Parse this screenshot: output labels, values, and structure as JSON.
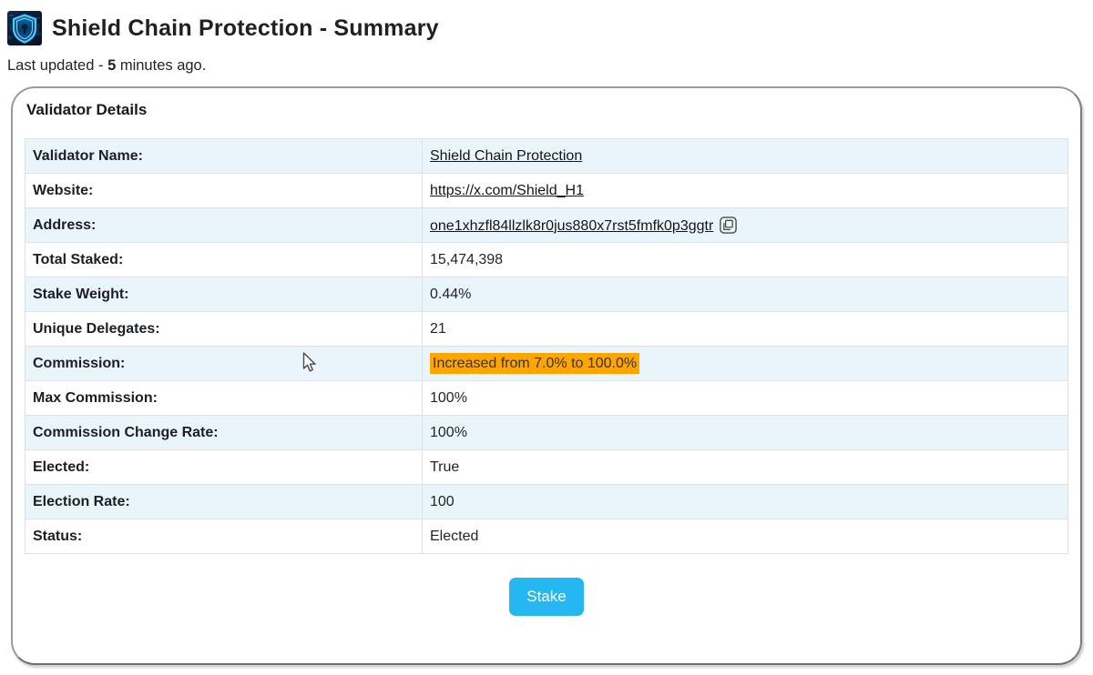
{
  "header": {
    "title": "Shield Chain Protection - Summary",
    "logo_icon": "shield-logo-icon",
    "last_updated_prefix": "Last updated - ",
    "last_updated_value": "5",
    "last_updated_suffix": " minutes ago."
  },
  "card": {
    "title": "Validator Details",
    "rows": [
      {
        "label": "Validator Name:",
        "value": "Shield Chain Protection",
        "type": "link"
      },
      {
        "label": "Website:",
        "value": "https://x.com/Shield_H1",
        "type": "link"
      },
      {
        "label": "Address:",
        "value": "one1xhzfl84llzlk8r0jus880x7rst5fmfk0p3ggtr",
        "type": "link-copy"
      },
      {
        "label": "Total Staked:",
        "value": "15,474,398",
        "type": "text"
      },
      {
        "label": "Stake Weight:",
        "value": "0.44%",
        "type": "text"
      },
      {
        "label": "Unique Delegates:",
        "value": "21",
        "type": "text"
      },
      {
        "label": "Commission:",
        "value": "Increased from 7.0% to 100.0%",
        "type": "highlight"
      },
      {
        "label": "Max Commission:",
        "value": "100%",
        "type": "text"
      },
      {
        "label": "Commission Change Rate:",
        "value": "100%",
        "type": "text"
      },
      {
        "label": "Elected:",
        "value": "True",
        "type": "text"
      },
      {
        "label": "Election Rate:",
        "value": "100",
        "type": "text"
      },
      {
        "label": "Status:",
        "value": "Elected",
        "type": "text"
      }
    ],
    "stake_button_label": "Stake"
  },
  "icons": {
    "logo": "shield-logo-icon",
    "copy": "copy-icon",
    "cursor": "arrow-cursor-icon"
  },
  "colors": {
    "row_stripe": "#eaf4fb",
    "table_border": "#dee2e6",
    "commission_highlight": "#ffa500",
    "stake_button": "#25b7f1",
    "card_border": "#9b9b9b",
    "logo_shield": "#3ec9ff",
    "logo_background": "#0a1a30"
  }
}
